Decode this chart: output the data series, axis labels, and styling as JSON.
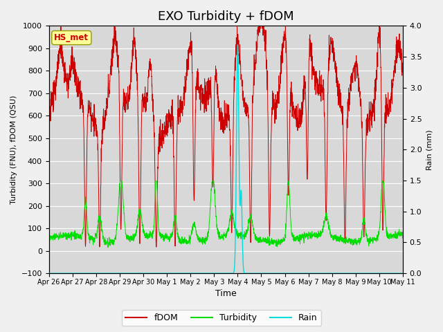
{
  "title": "EXO Turbidity + fDOM",
  "ylabel_left": "Turbidity (FNU), fDOM (QSU)",
  "ylabel_right": "Rain (mm)",
  "xlabel": "Time",
  "ylim_left": [
    -100,
    1000
  ],
  "ylim_right": [
    0.0,
    4.0
  ],
  "yticks_left": [
    -100,
    0,
    100,
    200,
    300,
    400,
    500,
    600,
    700,
    800,
    900,
    1000
  ],
  "yticks_right": [
    0.0,
    0.5,
    1.0,
    1.5,
    2.0,
    2.5,
    3.0,
    3.5,
    4.0
  ],
  "xtick_labels": [
    "Apr 26",
    "Apr 27",
    "Apr 28",
    "Apr 29",
    "Apr 30",
    "May 1",
    "May 2",
    "May 3",
    "May 4",
    "May 5",
    "May 6",
    "May 7",
    "May 8",
    "May 9",
    "May 10",
    "May 11"
  ],
  "fdom_color": "#cc0000",
  "turbidity_color": "#00dd00",
  "rain_color": "#00dddd",
  "fig_bg_color": "#f0f0f0",
  "plot_bg_color": "#d8d8d8",
  "label_box_color": "#ffff99",
  "label_box_text": "HS_met",
  "label_box_text_color": "#cc0000",
  "legend_labels": [
    "fDOM",
    "Turbidity",
    "Rain"
  ],
  "title_fontsize": 13,
  "grid_color": "#ffffff",
  "figsize": [
    6.4,
    4.8
  ],
  "dpi": 100
}
